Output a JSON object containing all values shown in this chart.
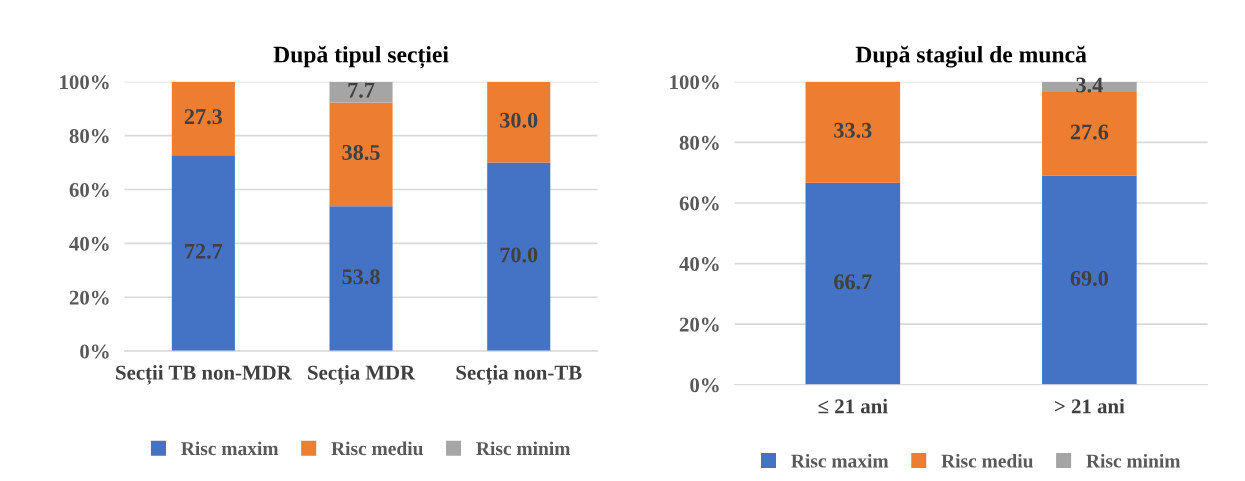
{
  "chart_data": [
    {
      "type": "bar",
      "stacked": true,
      "title": "După tipul secției",
      "categories": [
        "Secții TB non-MDR",
        "Secția MDR",
        "Secția non-TB"
      ],
      "series": [
        {
          "name": "Risc maxim",
          "color": "#4472c4",
          "values": [
            72.7,
            53.8,
            70.0
          ],
          "value_labels": [
            "72.7",
            "53.8",
            "70.0"
          ]
        },
        {
          "name": "Risc mediu",
          "color": "#ed7d31",
          "values": [
            27.3,
            38.5,
            30.0
          ],
          "value_labels": [
            "27.3",
            "38.5",
            "30.0"
          ]
        },
        {
          "name": "Risc minim",
          "color": "#a5a5a5",
          "values": [
            0,
            7.7,
            0
          ],
          "value_labels": [
            null,
            "7.7",
            null
          ]
        }
      ],
      "ylim": [
        0,
        100
      ],
      "yticks": [
        {
          "value": 0,
          "label": "0%"
        },
        {
          "value": 20,
          "label": "20%"
        },
        {
          "value": 40,
          "label": "40%"
        },
        {
          "value": 60,
          "label": "60%"
        },
        {
          "value": 80,
          "label": "80%"
        },
        {
          "value": 100,
          "label": "100%"
        }
      ],
      "grid": "y",
      "legend": "bottom"
    },
    {
      "type": "bar",
      "stacked": true,
      "title": "După stagiul de muncă",
      "categories": [
        "≤ 21 ani",
        "> 21 ani"
      ],
      "series": [
        {
          "name": "Risc maxim",
          "color": "#4472c4",
          "values": [
            66.7,
            69.0
          ],
          "value_labels": [
            "66.7",
            "69.0"
          ]
        },
        {
          "name": "Risc mediu",
          "color": "#ed7d31",
          "values": [
            33.3,
            27.6
          ],
          "value_labels": [
            "33.3",
            "27.6"
          ]
        },
        {
          "name": "Risc minim",
          "color": "#a5a5a5",
          "values": [
            0,
            3.4
          ],
          "value_labels": [
            null,
            "3.4"
          ]
        }
      ],
      "ylim": [
        0,
        100
      ],
      "yticks": [
        {
          "value": 0,
          "label": "0%"
        },
        {
          "value": 20,
          "label": "20%"
        },
        {
          "value": 40,
          "label": "40%"
        },
        {
          "value": 60,
          "label": "60%"
        },
        {
          "value": 80,
          "label": "80%"
        },
        {
          "value": 100,
          "label": "100%"
        }
      ],
      "grid": "y",
      "legend": "bottom"
    }
  ]
}
